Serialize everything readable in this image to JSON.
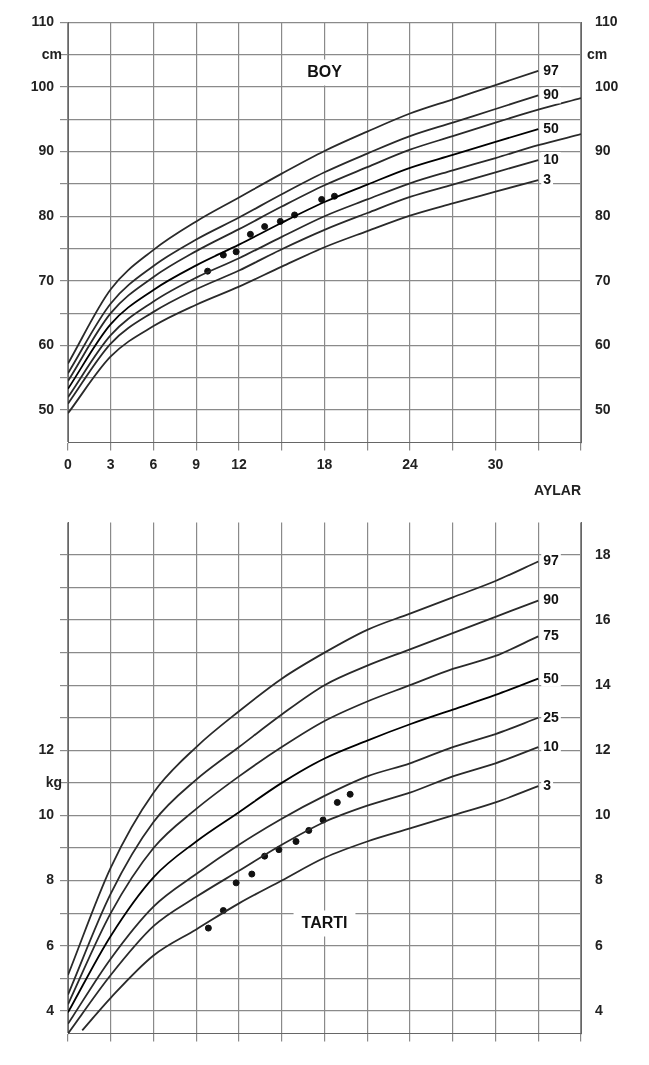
{
  "chart_data": [
    {
      "type": "line",
      "title": "BOY",
      "xlabel": "AYLAR",
      "ylabel": "cm",
      "y2label": "cm",
      "marker": "none",
      "grid": true,
      "legend": false,
      "x": [
        0,
        3,
        6,
        9,
        12,
        15,
        18,
        21,
        24,
        27,
        30,
        33
      ],
      "xlim": [
        0,
        36
      ],
      "xticks": [
        0,
        3,
        6,
        9,
        12,
        {
          "value": 15,
          "label": null
        },
        18,
        {
          "value": 21,
          "label": null
        },
        24,
        {
          "value": 27,
          "label": null
        },
        30,
        {
          "value": 33,
          "label": null
        },
        {
          "value": 36,
          "label": null
        }
      ],
      "ylim": [
        45,
        110
      ],
      "yticks": [
        50,
        {
          "value": 55,
          "label": null
        },
        60,
        {
          "value": 65,
          "label": null
        },
        70,
        {
          "value": 75,
          "label": null
        },
        80,
        {
          "value": 85,
          "label": null
        },
        90,
        {
          "value": 95,
          "label": null
        },
        100,
        {
          "value": 105,
          "label": null
        },
        110
      ],
      "y2lim": [
        45,
        110
      ],
      "y2ticks": [
        50,
        60,
        70,
        80,
        90,
        100,
        110
      ],
      "series": [
        {
          "name": "97",
          "color": "#2a2a2a",
          "values": [
            57.2,
            68.7,
            74.8,
            79.2,
            82.9,
            86.6,
            90.1,
            93.1,
            95.9,
            98.1,
            100.3,
            102.5
          ]
        },
        {
          "name": "90",
          "color": "#2a2a2a",
          "values": [
            55.7,
            66.5,
            72.3,
            76.4,
            79.8,
            83.4,
            86.8,
            89.7,
            92.4,
            94.5,
            96.6,
            98.7
          ]
        },
        {
          "color": "#2a2a2a",
          "x": [
            0,
            3,
            6,
            9,
            12,
            15,
            18,
            21,
            24,
            27,
            30,
            33,
            36
          ],
          "values": [
            54.5,
            65.0,
            70.6,
            74.6,
            78.0,
            81.5,
            84.8,
            87.6,
            90.3,
            92.4,
            94.5,
            96.5,
            98.3
          ]
        },
        {
          "name": "50",
          "color": "#000000",
          "values": [
            53.3,
            63.3,
            68.6,
            72.4,
            75.6,
            79.0,
            82.2,
            84.9,
            87.5,
            89.5,
            91.5,
            93.5
          ]
        },
        {
          "color": "#2a2a2a",
          "x": [
            0,
            3,
            6,
            9,
            12,
            15,
            18,
            21,
            24,
            27,
            30,
            33,
            36
          ],
          "values": [
            52.0,
            61.6,
            66.8,
            70.5,
            73.5,
            76.8,
            80.0,
            82.6,
            85.1,
            87.1,
            89.0,
            91.0,
            92.7
          ]
        },
        {
          "name": "10",
          "color": "#2a2a2a",
          "values": [
            51.0,
            60.3,
            65.2,
            68.7,
            71.6,
            74.9,
            77.9,
            80.5,
            83.0,
            84.9,
            86.8,
            88.7
          ]
        },
        {
          "name": "3",
          "color": "#2a2a2a",
          "values": [
            49.5,
            58.3,
            63.0,
            66.3,
            69.1,
            72.2,
            75.2,
            77.7,
            80.1,
            82.0,
            83.8,
            85.6
          ]
        },
        {
          "type": "scatter",
          "marker": "circle",
          "color": "#111111",
          "x": [
            9.8,
            10.9,
            11.8,
            12.8,
            13.8,
            14.9,
            15.9,
            17.8,
            18.7
          ],
          "values": [
            71.5,
            74.0,
            74.5,
            77.2,
            78.4,
            79.2,
            80.2,
            82.6,
            83.1
          ]
        }
      ]
    },
    {
      "type": "line",
      "title": "TARTI",
      "ylabel": "kg",
      "marker": "none",
      "grid": true,
      "legend": false,
      "tick_labels": "y",
      "x": [
        0,
        3,
        6,
        9,
        12,
        15,
        18,
        21,
        24,
        27,
        30,
        33
      ],
      "xlim": [
        0,
        36
      ],
      "xticks": [
        0,
        3,
        6,
        9,
        12,
        {
          "value": 15,
          "label": null
        },
        18,
        {
          "value": 21,
          "label": null
        },
        24,
        {
          "value": 27,
          "label": null
        },
        30,
        {
          "value": 33,
          "label": null
        },
        {
          "value": 36,
          "label": null
        }
      ],
      "ylim": [
        3.3,
        19
      ],
      "yticks": [
        4,
        {
          "value": 5,
          "label": null
        },
        6,
        {
          "value": 7,
          "label": null
        },
        8,
        {
          "value": 9,
          "label": null
        },
        10,
        {
          "value": 11,
          "label": null
        },
        12,
        {
          "value": 13,
          "label": null
        },
        {
          "value": 14,
          "label": null
        },
        {
          "value": 15,
          "label": null
        },
        {
          "value": 16,
          "label": null
        },
        {
          "value": 17,
          "label": null
        },
        {
          "value": 18,
          "label": null
        }
      ],
      "y2lim": [
        3.3,
        19
      ],
      "y2ticks": [
        4,
        6,
        8,
        10,
        12,
        14,
        16,
        18
      ],
      "series": [
        {
          "name": "97",
          "color": "#2a2a2a",
          "values": [
            5.1,
            8.4,
            10.7,
            12.1,
            13.2,
            14.2,
            15.0,
            15.7,
            16.2,
            16.7,
            17.2,
            17.8
          ]
        },
        {
          "name": "90",
          "color": "#2a2a2a",
          "values": [
            4.5,
            7.6,
            9.8,
            11.1,
            12.1,
            13.1,
            14.0,
            14.6,
            15.1,
            15.6,
            16.1,
            16.6
          ]
        },
        {
          "name": "75",
          "color": "#2a2a2a",
          "values": [
            4.2,
            7.0,
            9.0,
            10.2,
            11.2,
            12.1,
            12.9,
            13.5,
            14.0,
            14.5,
            14.9,
            15.5
          ]
        },
        {
          "name": "50",
          "color": "#000000",
          "values": [
            3.95,
            6.3,
            8.1,
            9.2,
            10.1,
            11.0,
            11.75,
            12.3,
            12.8,
            13.25,
            13.7,
            14.2
          ]
        },
        {
          "name": "25",
          "color": "#2a2a2a",
          "values": [
            3.6,
            5.6,
            7.2,
            8.2,
            9.1,
            9.9,
            10.6,
            11.2,
            11.6,
            12.1,
            12.5,
            13.0
          ]
        },
        {
          "name": "10",
          "color": "#2a2a2a",
          "values": [
            3.3,
            5.1,
            6.6,
            7.5,
            8.3,
            9.1,
            9.8,
            10.3,
            10.7,
            11.2,
            11.6,
            12.1
          ]
        },
        {
          "name": "3",
          "color": "#2a2a2a",
          "x": [
            1,
            3,
            6,
            9,
            12,
            15,
            18,
            21,
            24,
            27,
            30,
            33
          ],
          "values": [
            3.4,
            4.4,
            5.7,
            6.5,
            7.3,
            8.0,
            8.7,
            9.2,
            9.6,
            10.0,
            10.4,
            10.9
          ]
        },
        {
          "type": "scatter",
          "marker": "circle",
          "color": "#111111",
          "x": [
            9.85,
            10.9,
            11.8,
            12.9,
            13.8,
            14.8,
            16.0,
            16.9,
            17.9,
            18.9,
            19.8
          ],
          "values": [
            6.54,
            7.08,
            7.93,
            8.2,
            8.75,
            8.95,
            9.2,
            9.54,
            9.86,
            10.4,
            10.65
          ]
        }
      ]
    }
  ]
}
